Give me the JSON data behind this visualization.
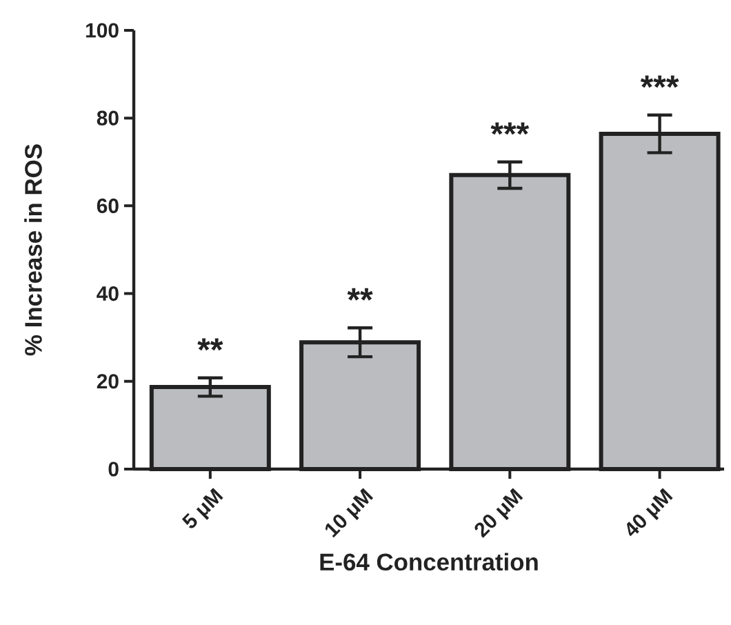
{
  "chart_data": {
    "type": "bar",
    "xlabel": "E-64 Concentration",
    "ylabel": "% Increase in ROS",
    "categories": [
      "5 μM",
      "10 μM",
      "20 μM",
      "40 μM"
    ],
    "values": [
      18.7,
      28.9,
      67.0,
      76.4
    ],
    "errors": [
      2.1,
      3.3,
      3.0,
      4.3
    ],
    "color": "#bbbcc0",
    "ylim": [
      0,
      100
    ],
    "yticks": [
      0,
      20,
      40,
      60,
      80,
      100
    ],
    "grid": false,
    "annotations": [
      "**",
      "**",
      "***",
      "***"
    ]
  }
}
